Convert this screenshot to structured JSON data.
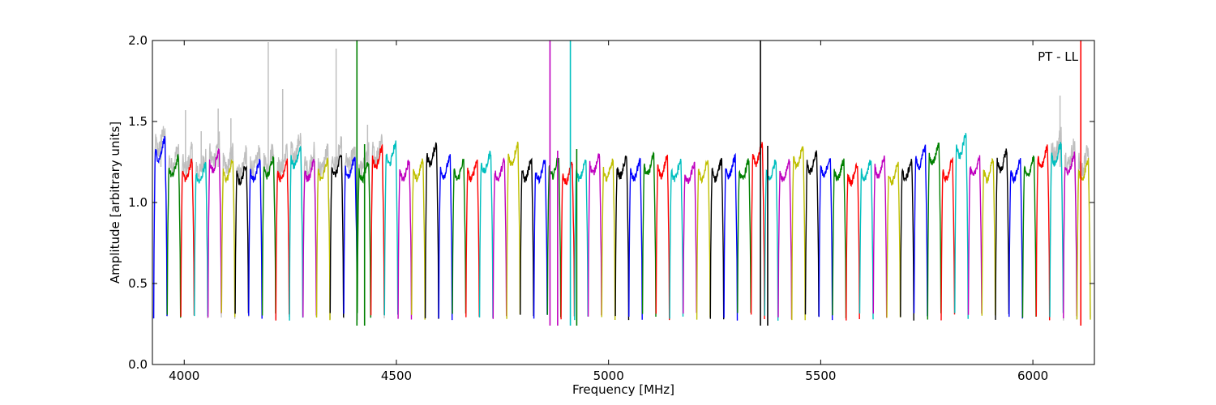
{
  "chart_data": {
    "type": "line",
    "title": "",
    "xlabel": "Frequency [MHz]",
    "ylabel": "Amplitude [arbitrary units]",
    "annotation": "PT - LL",
    "xlim": [
      3925,
      6145
    ],
    "ylim": [
      0.0,
      2.0
    ],
    "xticks": [
      4000,
      4500,
      5000,
      5500,
      6000
    ],
    "yticks": [
      0.0,
      0.5,
      1.0,
      1.5,
      2.0
    ],
    "ytick_labels": [
      "0.0",
      "0.5",
      "1.0",
      "1.5",
      "2.0"
    ],
    "grid": false,
    "legend": "none",
    "band_width_mhz": 32,
    "band_start_mhz": 3928,
    "band_count": 69,
    "color_cycle": [
      "#0000ff",
      "#008000",
      "#ff0000",
      "#00bfbf",
      "#bf00bf",
      "#bfbf00",
      "#000000"
    ],
    "background_trace_color": "#bfbfbf",
    "band_levels": [
      1.33,
      1.22,
      1.2,
      1.18,
      1.26,
      1.2,
      1.18,
      1.2,
      1.22,
      1.2,
      1.28,
      1.2,
      1.2,
      1.23,
      1.22,
      1.2,
      1.28,
      1.3,
      1.2,
      1.2,
      1.3,
      1.22,
      1.2,
      1.2,
      1.25,
      1.2,
      1.3,
      1.2,
      1.2,
      1.22,
      1.18,
      1.2,
      1.24,
      1.2,
      1.22,
      1.2,
      1.23,
      1.22,
      1.2,
      1.18,
      1.2,
      1.2,
      1.22,
      1.2,
      1.3,
      1.2,
      1.2,
      1.28,
      1.25,
      1.22,
      1.2,
      1.18,
      1.2,
      1.22,
      1.18,
      1.2,
      1.28,
      1.3,
      1.2,
      1.35,
      1.22,
      1.2,
      1.26,
      1.2,
      1.22,
      1.28,
      1.3,
      1.24,
      1.2
    ],
    "spikes": [
      {
        "x": 4407,
        "y": 2.0,
        "color": "#008000"
      },
      {
        "x": 4425,
        "y": 1.36,
        "color": "#008000"
      },
      {
        "x": 4862,
        "y": 2.0,
        "color": "#bf00bf"
      },
      {
        "x": 4880,
        "y": 1.32,
        "color": "#bf00bf"
      },
      {
        "x": 4910,
        "y": 2.0,
        "color": "#00bfbf"
      },
      {
        "x": 4925,
        "y": 1.33,
        "color": "#008000"
      },
      {
        "x": 5358,
        "y": 2.0,
        "color": "#000000"
      },
      {
        "x": 5375,
        "y": 1.35,
        "color": "#000000"
      },
      {
        "x": 6113,
        "y": 2.0,
        "color": "#ff0000"
      }
    ],
    "background_spikes": [
      {
        "x": 3945,
        "y": 1.42
      },
      {
        "x": 4003,
        "y": 1.57
      },
      {
        "x": 4040,
        "y": 1.44
      },
      {
        "x": 4080,
        "y": 1.58
      },
      {
        "x": 4110,
        "y": 1.52
      },
      {
        "x": 4198,
        "y": 1.99
      },
      {
        "x": 4232,
        "y": 1.7
      },
      {
        "x": 4358,
        "y": 1.95
      },
      {
        "x": 4432,
        "y": 1.48
      },
      {
        "x": 6064,
        "y": 1.66
      }
    ]
  }
}
